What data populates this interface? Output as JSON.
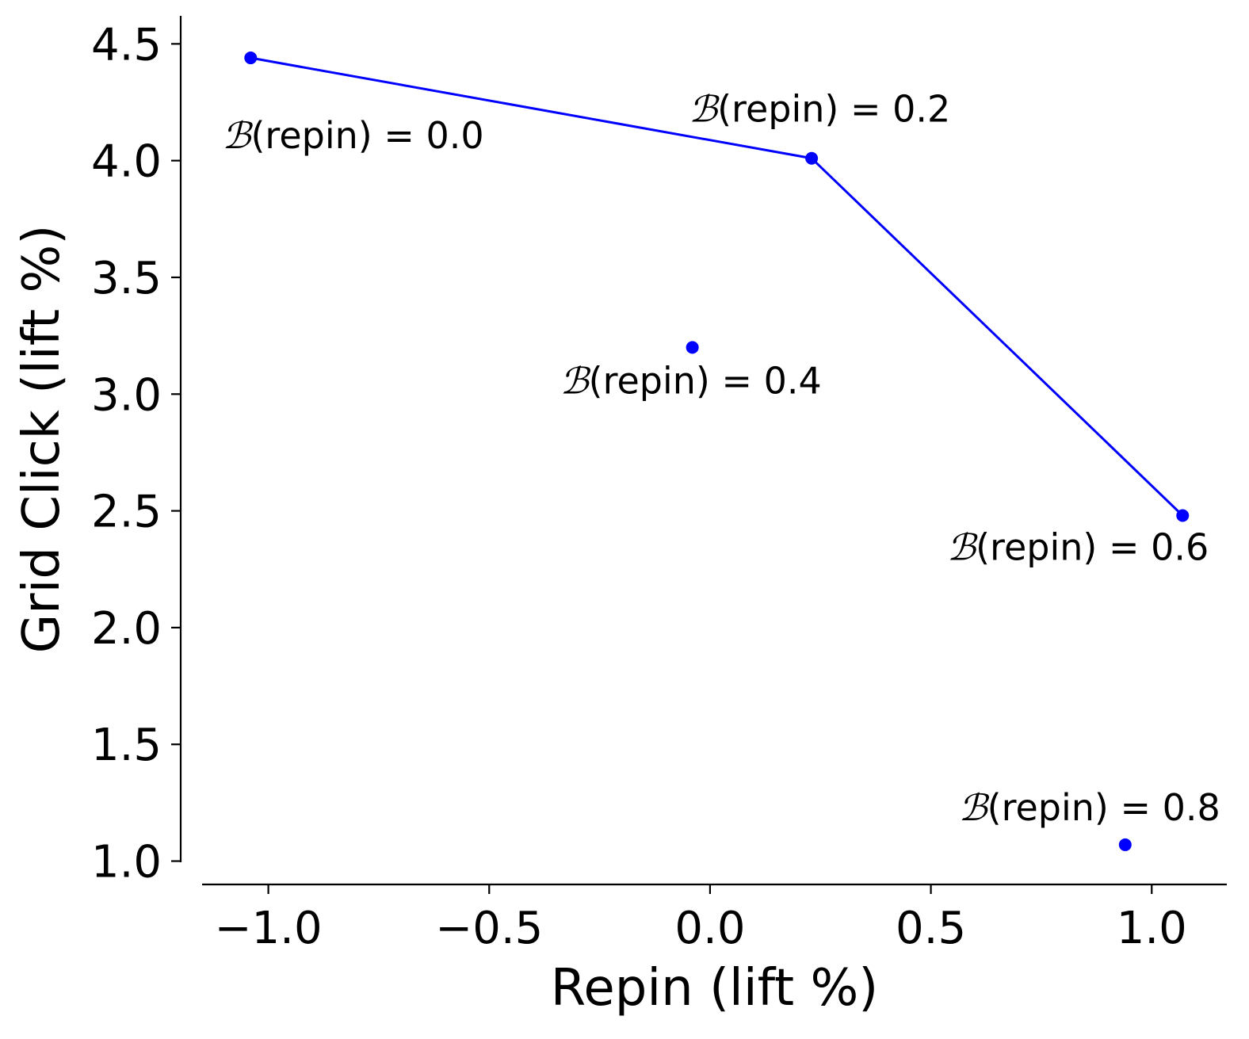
{
  "chart_data": {
    "type": "scatter",
    "title": "",
    "xlabel": "Repin (lift %)",
    "ylabel": "Grid Click (lift %)",
    "xlim": [
      -1.15,
      1.17
    ],
    "ylim": [
      0.9,
      4.62
    ],
    "xticks": [
      -1.0,
      -0.5,
      0.0,
      0.5,
      1.0
    ],
    "xtick_labels": [
      "−1.0",
      "−0.5",
      "0.0",
      "0.5",
      "1.0"
    ],
    "yticks": [
      1.0,
      1.5,
      2.0,
      2.5,
      3.0,
      3.5,
      4.0,
      4.5
    ],
    "ytick_labels": [
      "1.0",
      "1.5",
      "2.0",
      "2.5",
      "3.0",
      "3.5",
      "4.0",
      "4.5"
    ],
    "grid": false,
    "spines": [
      "left",
      "bottom"
    ],
    "color": "#0000ff",
    "points": [
      {
        "x": -1.04,
        "y": 4.44,
        "label_prefix": "ℬ",
        "label_text": "(repin) = 0.0",
        "label_anchor": "below-right"
      },
      {
        "x": 0.23,
        "y": 4.01,
        "label_prefix": "ℬ",
        "label_text": "(repin) = 0.2",
        "label_anchor": "above"
      },
      {
        "x": -0.04,
        "y": 3.2,
        "label_prefix": "ℬ",
        "label_text": "(repin) = 0.4",
        "label_anchor": "below"
      },
      {
        "x": 1.07,
        "y": 2.48,
        "label_prefix": "ℬ",
        "label_text": "(repin) = 0.6",
        "label_anchor": "below-left"
      },
      {
        "x": 0.94,
        "y": 1.07,
        "label_prefix": "ℬ",
        "label_text": "(repin) = 0.8",
        "label_anchor": "above-left"
      }
    ],
    "frontier_line": {
      "x": [
        -1.04,
        0.23,
        1.07
      ],
      "y": [
        4.44,
        4.01,
        2.48
      ]
    }
  }
}
